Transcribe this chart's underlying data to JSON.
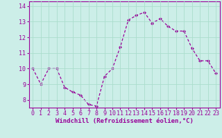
{
  "x": [
    0,
    1,
    2,
    3,
    4,
    5,
    6,
    7,
    8,
    9,
    10,
    11,
    12,
    13,
    14,
    15,
    16,
    17,
    18,
    19,
    20,
    21,
    22,
    23
  ],
  "y": [
    10.0,
    9.0,
    10.0,
    10.0,
    8.8,
    8.5,
    8.3,
    7.7,
    7.6,
    9.5,
    10.0,
    11.4,
    13.1,
    13.4,
    13.6,
    12.9,
    13.2,
    12.7,
    12.4,
    12.4,
    11.3,
    10.5,
    10.5,
    9.7
  ],
  "line_color": "#990099",
  "marker": "D",
  "marker_size": 2.0,
  "line_width": 0.9,
  "background_color": "#cceee8",
  "grid_color": "#aaddcc",
  "xlabel": "Windchill (Refroidissement éolien,°C)",
  "xlabel_fontsize": 6.5,
  "tick_fontsize": 6.0,
  "ylim": [
    7.5,
    14.3
  ],
  "xlim": [
    -0.5,
    23.5
  ],
  "yticks": [
    8,
    9,
    10,
    11,
    12,
    13,
    14
  ],
  "xticks": [
    0,
    1,
    2,
    3,
    4,
    5,
    6,
    7,
    8,
    9,
    10,
    11,
    12,
    13,
    14,
    15,
    16,
    17,
    18,
    19,
    20,
    21,
    22,
    23
  ]
}
